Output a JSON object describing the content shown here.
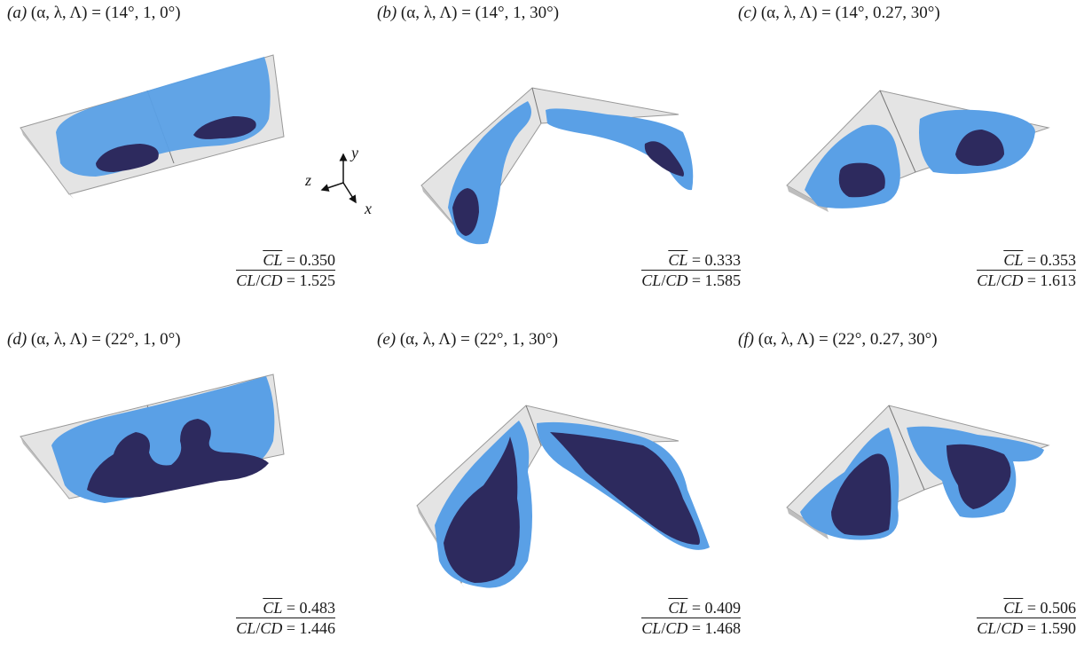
{
  "axes_triad": {
    "y_label": "y",
    "z_label": "z",
    "x_label": "x"
  },
  "panels": [
    {
      "letter": "(a)",
      "params_text": "(α, λ, Λ) = (14°, 1, 0°)",
      "cl_text": "= 0.350",
      "ratio_text": "= 1.525"
    },
    {
      "letter": "(b)",
      "params_text": "(α, λ, Λ) = (14°, 1, 30°)",
      "cl_text": "= 0.333",
      "ratio_text": "= 1.585"
    },
    {
      "letter": "(c)",
      "params_text": "(α, λ, Λ) = (14°, 0.27, 30°)",
      "cl_text": "= 0.353",
      "ratio_text": "= 1.613"
    },
    {
      "letter": "(d)",
      "params_text": "(α, λ, Λ) = (22°, 1, 0°)",
      "cl_text": "= 0.483",
      "ratio_text": "= 1.446"
    },
    {
      "letter": "(e)",
      "params_text": "(α, λ, Λ) = (22°, 1, 30°)",
      "cl_text": "= 0.409",
      "ratio_text": "= 1.468"
    },
    {
      "letter": "(f)",
      "params_text": "(α, λ, Λ) = (22°, 0.27, 30°)",
      "cl_text": "= 0.506",
      "ratio_text": "= 1.590"
    }
  ],
  "coeff_symbols": {
    "cl": "CL",
    "ratio_num": "CL",
    "ratio_den": "CD"
  },
  "colors": {
    "wing_gray": "#e6e6e6",
    "light_blue": "#5aa0e6",
    "dark_navy": "#2d2a5e"
  }
}
